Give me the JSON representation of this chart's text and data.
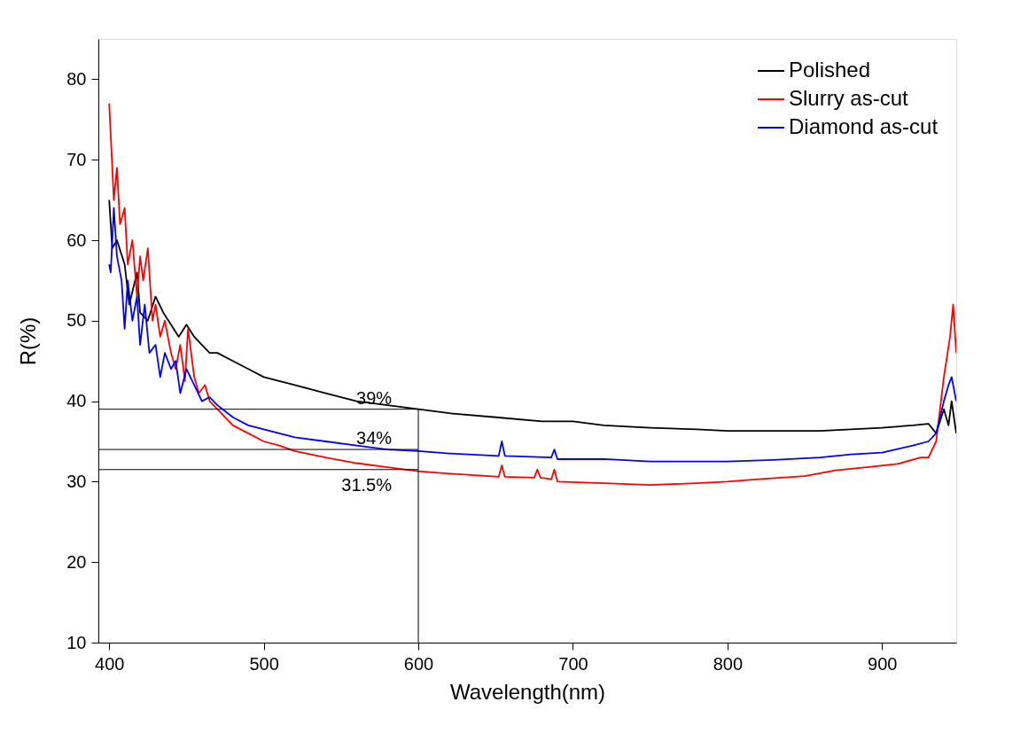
{
  "chart_data": {
    "type": "line",
    "xlabel": "Wavelength(nm)",
    "ylabel": "R(%)",
    "xlim": [
      393,
      948
    ],
    "ylim": [
      10,
      85
    ],
    "xticks": [
      400,
      500,
      600,
      700,
      800,
      900
    ],
    "yticks": [
      10,
      20,
      30,
      40,
      50,
      60,
      70,
      80
    ],
    "grid": false,
    "legend": "top right",
    "line_style": "solid",
    "marker": "none",
    "series": [
      {
        "name": "Polished",
        "color": "#000000",
        "x": [
          400,
          402,
          405,
          410,
          413,
          418,
          420,
          425,
          430,
          435,
          440,
          445,
          450,
          455,
          460,
          465,
          470,
          480,
          490,
          500,
          520,
          540,
          560,
          580,
          600,
          620,
          650,
          680,
          700,
          720,
          750,
          780,
          800,
          830,
          860,
          880,
          900,
          920,
          930,
          935,
          940,
          943,
          945,
          948
        ],
        "values": [
          65,
          59,
          60,
          57,
          52,
          56,
          51,
          50,
          53,
          51,
          49.5,
          48,
          49.5,
          48,
          47,
          46,
          46,
          45,
          44,
          43,
          42,
          41,
          40,
          39.5,
          39,
          38.5,
          38,
          37.5,
          37.5,
          37,
          36.7,
          36.5,
          36.3,
          36.3,
          36.3,
          36.5,
          36.7,
          37,
          37.2,
          36,
          39,
          37,
          40,
          36
        ]
      },
      {
        "name": "Slurry as-cut",
        "color": "#ff0000",
        "x": [
          400,
          401,
          403,
          405,
          407,
          410,
          412,
          415,
          418,
          420,
          422,
          425,
          428,
          430,
          433,
          436,
          440,
          443,
          446,
          449,
          451,
          455,
          458,
          462,
          465,
          470,
          475,
          480,
          490,
          500,
          510,
          520,
          540,
          560,
          580,
          600,
          620,
          652,
          654,
          656,
          675,
          677,
          679,
          686,
          688,
          690,
          720,
          750,
          780,
          800,
          820,
          850,
          870,
          890,
          910,
          925,
          930,
          935,
          940,
          944,
          946,
          948
        ],
        "values": [
          77,
          73,
          65,
          69,
          62,
          64,
          57,
          60,
          53,
          58,
          55,
          59,
          50,
          52,
          48,
          50,
          46,
          44,
          47,
          42.5,
          49,
          43,
          41,
          42,
          40,
          39,
          38,
          37,
          36,
          35,
          34.5,
          33.8,
          33,
          32.3,
          31.8,
          31.3,
          31,
          30.6,
          32,
          30.6,
          30.5,
          31.5,
          30.5,
          30.3,
          31.5,
          30,
          29.8,
          29.6,
          29.8,
          30,
          30.3,
          30.7,
          31.4,
          31.8,
          32.2,
          33,
          33,
          35,
          43,
          48,
          52,
          46
        ]
      },
      {
        "name": "Diamond as-cut",
        "color": "#0000ff",
        "x": [
          400,
          401,
          403,
          405,
          408,
          410,
          412,
          415,
          418,
          420,
          423,
          426,
          430,
          433,
          436,
          440,
          443,
          446,
          450,
          455,
          460,
          465,
          470,
          480,
          490,
          500,
          520,
          540,
          560,
          580,
          600,
          620,
          652,
          654,
          656,
          686,
          688,
          690,
          720,
          750,
          780,
          800,
          830,
          860,
          880,
          900,
          920,
          930,
          935,
          940,
          943,
          945,
          948
        ],
        "values": [
          57,
          56,
          64,
          58,
          55,
          49,
          55,
          50,
          53,
          47,
          52,
          46,
          47,
          43,
          46,
          44,
          45,
          41,
          44,
          42,
          40,
          40.5,
          39.5,
          38,
          37,
          36.5,
          35.5,
          35,
          34.5,
          34,
          33.8,
          33.5,
          33.2,
          35,
          33.2,
          33,
          34,
          32.8,
          32.8,
          32.5,
          32.5,
          32.5,
          32.7,
          33,
          33.4,
          33.6,
          34.5,
          35,
          36,
          40,
          42,
          43,
          40
        ]
      }
    ],
    "ref_lines": [
      {
        "axis": "y",
        "value": 39,
        "label": "39%",
        "color": "#000000"
      },
      {
        "axis": "y",
        "value": 34,
        "label": "34%",
        "color": "#000000"
      },
      {
        "axis": "y",
        "value": 31.5,
        "label": "31.5%",
        "color": "#000000"
      },
      {
        "axis": "x",
        "value": 600,
        "color": "#000000"
      }
    ]
  }
}
